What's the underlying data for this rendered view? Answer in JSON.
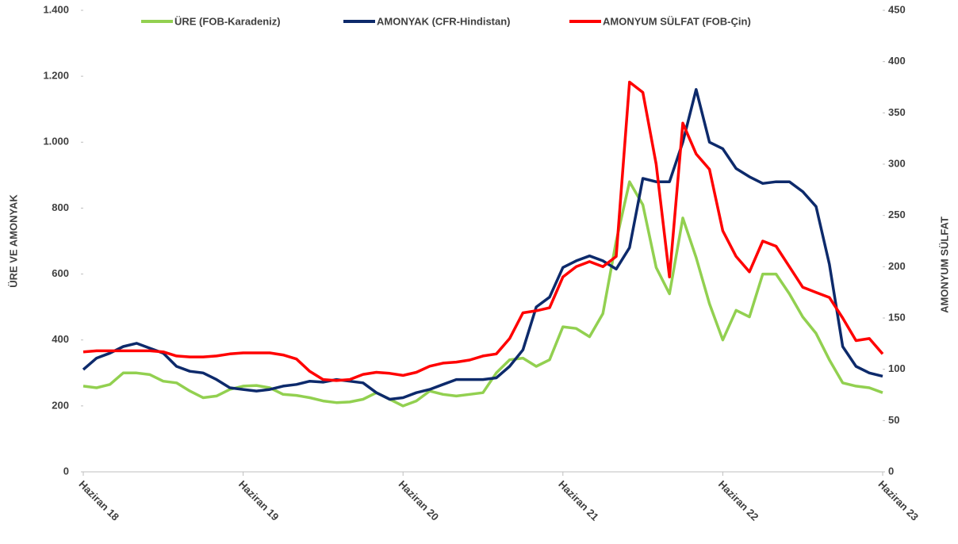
{
  "chart_data": {
    "type": "line",
    "categories": [
      "Haziran 18",
      null,
      null,
      null,
      null,
      null,
      null,
      null,
      null,
      null,
      null,
      null,
      "Haziran 19",
      null,
      null,
      null,
      null,
      null,
      null,
      null,
      null,
      null,
      null,
      null,
      "Haziran 20",
      null,
      null,
      null,
      null,
      null,
      null,
      null,
      null,
      null,
      null,
      null,
      "Haziran 21",
      null,
      null,
      null,
      null,
      null,
      null,
      null,
      null,
      null,
      null,
      null,
      "Haziran 22",
      null,
      null,
      null,
      null,
      null,
      null,
      null,
      null,
      null,
      null,
      null,
      "Haziran 23"
    ],
    "series": [
      {
        "name": "ÜRE (FOB-Karadeniz)",
        "color": "#92d050",
        "axis": "y",
        "values": [
          260,
          255,
          265,
          300,
          300,
          295,
          275,
          270,
          245,
          225,
          230,
          250,
          260,
          262,
          255,
          235,
          232,
          225,
          215,
          210,
          212,
          220,
          240,
          220,
          200,
          215,
          245,
          235,
          230,
          235,
          240,
          300,
          340,
          345,
          320,
          340,
          440,
          435,
          410,
          480,
          700,
          880,
          810,
          620,
          540,
          770,
          650,
          510,
          400,
          490,
          470,
          600,
          600,
          540,
          470,
          420,
          340,
          270,
          260,
          255,
          240
        ]
      },
      {
        "name": "AMONYAK (CFR-Hindistan)",
        "color": "#0d2a6b",
        "axis": "y",
        "values": [
          310,
          345,
          360,
          380,
          390,
          375,
          360,
          320,
          305,
          300,
          280,
          255,
          250,
          245,
          250,
          260,
          265,
          275,
          272,
          280,
          275,
          270,
          240,
          220,
          225,
          240,
          250,
          265,
          280,
          280,
          280,
          285,
          320,
          370,
          500,
          530,
          620,
          640,
          655,
          640,
          615,
          680,
          890,
          880,
          880,
          1000,
          1160,
          1000,
          980,
          920,
          895,
          875,
          880,
          880,
          850,
          805,
          630,
          380,
          320,
          300,
          290
        ]
      },
      {
        "name": "AMONYUM SÜLFAT (FOB-Çin)",
        "color": "#ff0000",
        "axis": "y2",
        "values": [
          117,
          118,
          118,
          118,
          118,
          118,
          117,
          113,
          112,
          112,
          113,
          115,
          116,
          116,
          116,
          114,
          110,
          98,
          90,
          89,
          90,
          95,
          97,
          96,
          94,
          97,
          103,
          106,
          107,
          109,
          113,
          115,
          130,
          155,
          157,
          160,
          190,
          200,
          205,
          200,
          210,
          380,
          370,
          300,
          190,
          340,
          310,
          295,
          235,
          210,
          195,
          225,
          220,
          200,
          180,
          175,
          170,
          150,
          128,
          130,
          115
        ]
      }
    ],
    "ylabel": "ÜRE VE AMONYAK",
    "y2label": "AMONYUM SÜLFAT",
    "ylim": [
      0,
      1400
    ],
    "yticks": [
      0,
      200,
      400,
      600,
      800,
      {
        "value": 1000,
        "label": "1.000"
      },
      {
        "value": 1200,
        "label": "1.200"
      },
      {
        "value": 1400,
        "label": "1.400"
      }
    ],
    "y2lim": [
      0,
      450
    ],
    "y2ticks": [
      0,
      50,
      100,
      150,
      200,
      250,
      300,
      350,
      400,
      450
    ],
    "grid": false,
    "legend": "top"
  }
}
